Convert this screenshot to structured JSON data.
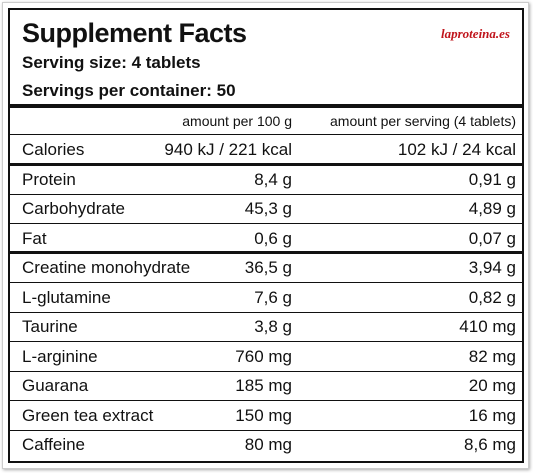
{
  "header": {
    "title": "Supplement Facts",
    "logo": "laproteina.es",
    "serving_size": "Serving size: 4 tablets",
    "servings_per_container": "Servings per container: 50"
  },
  "table": {
    "columns": [
      "amount per 100 g",
      "amount per serving (4 tablets)"
    ],
    "rows": [
      [
        "Calories",
        "940 kJ / 221 kcal",
        "102 kJ / 24 kcal"
      ],
      [
        "Protein",
        "8,4 g",
        "0,91 g"
      ],
      [
        "Carbohydrate",
        "45,3 g",
        "4,89 g"
      ],
      [
        "Fat",
        "0,6 g",
        "0,07 g"
      ],
      [
        "Creatine monohydrate",
        "36,5 g",
        "3,94 g"
      ],
      [
        "L-glutamine",
        "7,6 g",
        "0,82 g"
      ],
      [
        "Taurine",
        "3,8 g",
        "410 mg"
      ],
      [
        "L-arginine",
        "760 mg",
        "82 mg"
      ],
      [
        "Guarana",
        "185 mg",
        "20 mg"
      ],
      [
        "Green tea extract",
        "150 mg",
        "16 mg"
      ],
      [
        "Caffeine",
        "80 mg",
        "8,6 mg"
      ]
    ]
  }
}
